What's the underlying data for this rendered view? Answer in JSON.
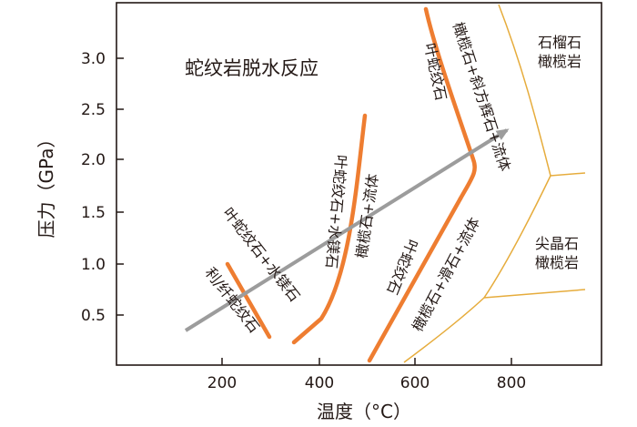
{
  "figure": {
    "title": "蛇纹岩脱水反应",
    "x_axis_label": "温度（°C）",
    "y_axis_label": "压力（GPa）",
    "x_ticks": [
      "200",
      "400",
      "600",
      "800"
    ],
    "y_ticks": [
      "0.5",
      "1.0",
      "1.5",
      "2.0",
      "2.5",
      "3.0"
    ]
  },
  "reactions": {
    "r1_upper": "叶蛇纹石+水镁石",
    "r1_lower": "利/纤蛇纹石",
    "r2_upper": "叶蛇纹石+水镁石",
    "r2_lower": "橄榄石+流体",
    "r3_upper": "叶蛇纹石",
    "r3_lower": "橄榄石+滑石+流体",
    "r4_upper": "叶蛇纹石",
    "r4_lower": "橄榄石+斜方辉石+流体"
  },
  "regions": {
    "garnet_line1": "石榴石",
    "garnet_line2": "橄榄岩",
    "spinel_line1": "尖晶石",
    "spinel_line2": "橄榄岩"
  },
  "colors": {
    "reaction_line": "#ee7d31",
    "facies_line": "#e6ac3c",
    "arrow": "#9c9c9c",
    "axis": "#231815"
  }
}
